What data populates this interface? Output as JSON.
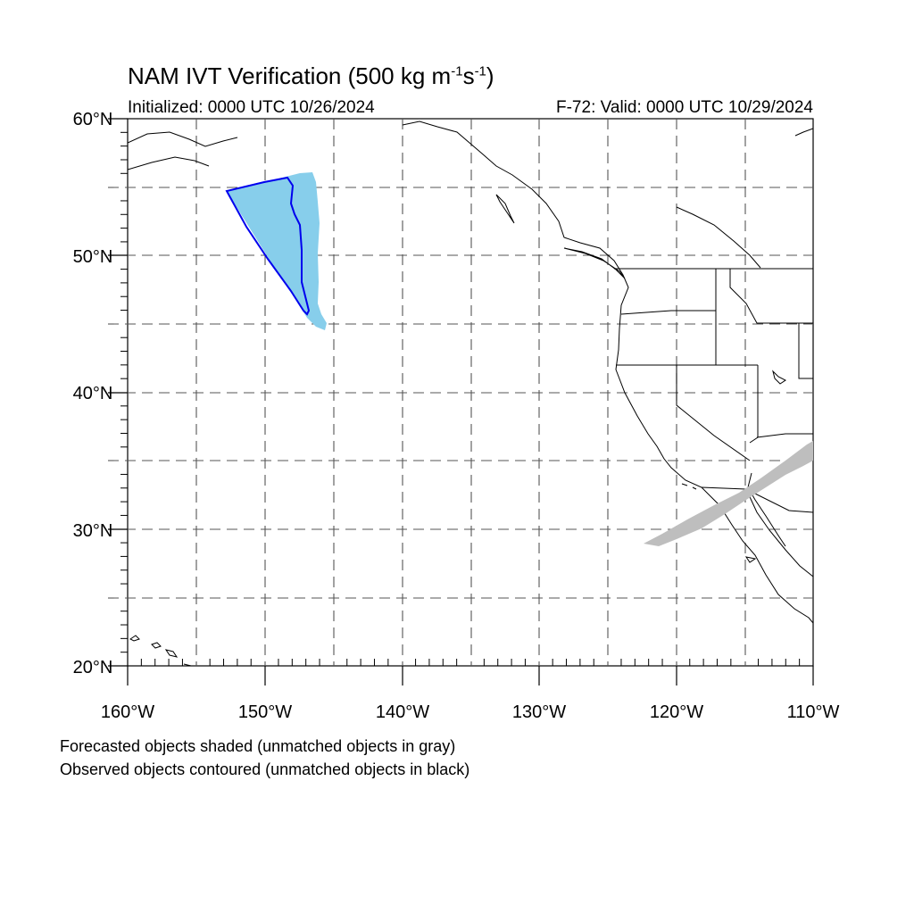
{
  "title": {
    "main": "NAM IVT Verification (500 kg m",
    "sup1": "-1",
    "mid": "s",
    "sup2": "-1",
    "end": ")"
  },
  "initialized": "Initialized: 0000 UTC 10/26/2024",
  "valid": "F-72: Valid: 0000 UTC 10/29/2024",
  "map": {
    "lon_range": [
      -160,
      -110
    ],
    "lat_range": [
      20,
      60
    ],
    "grid": "dashed every 5 degrees",
    "lat_ticks": [
      "20°N",
      "30°N",
      "40°N",
      "50°N",
      "60°N"
    ],
    "lon_ticks": [
      "160°W",
      "150°W",
      "140°W",
      "130°W",
      "120°W",
      "110°W"
    ],
    "colors": {
      "matched_forecast_fill": "#87ceeb",
      "matched_observed_contour": "#0000ee",
      "unmatched_forecast_fill": "#bebebe",
      "coastline": "#000000",
      "grid": "#555555"
    }
  },
  "footnotes": {
    "line1": "Forecasted objects shaded (unmatched objects in gray)",
    "line2": "Observed objects contoured (unmatched objects in black)"
  }
}
